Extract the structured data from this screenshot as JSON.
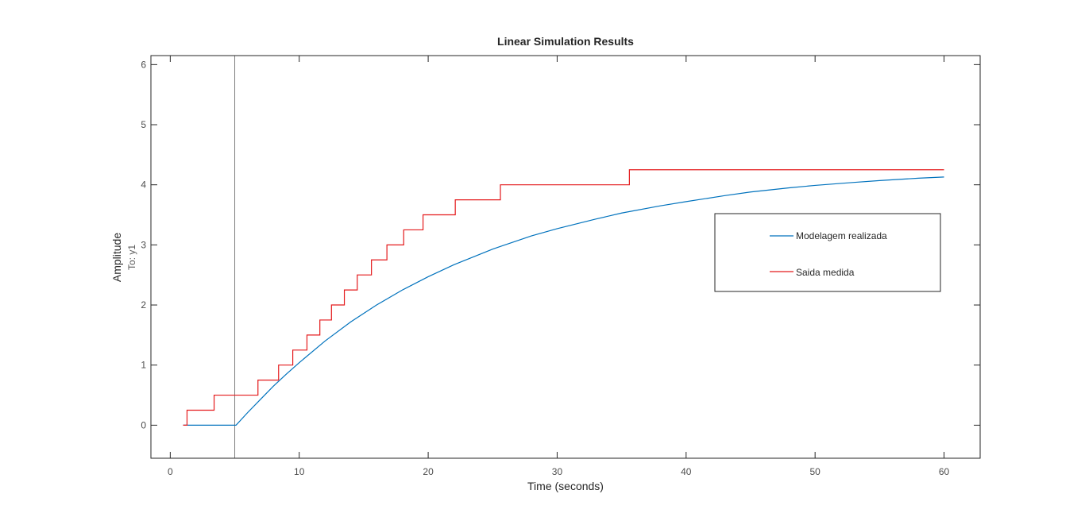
{
  "chart_data": {
    "type": "line",
    "title": "Linear Simulation Results",
    "xlabel": "Time (seconds)",
    "ylabel": "Amplitude",
    "ysublabel": "To: y1",
    "xlim": [
      -1.5,
      62.8
    ],
    "ylim": [
      -0.55,
      6.15
    ],
    "xticks": [
      0,
      10,
      20,
      30,
      40,
      50,
      60
    ],
    "yticks": [
      0,
      1,
      2,
      3,
      4,
      5,
      6
    ],
    "grid": false,
    "legend_position": "center-right",
    "reference_line_x": 5,
    "series": [
      {
        "name": "Modelagem realizada",
        "color": "#0072BD",
        "style": "line",
        "x": [
          1,
          5,
          5.1,
          6,
          7,
          8,
          9,
          10,
          12,
          14,
          16,
          18,
          20,
          22,
          25,
          28,
          30,
          33,
          35,
          38,
          40,
          43,
          45,
          48,
          50,
          53,
          55,
          58,
          60
        ],
        "y": [
          0,
          0,
          0.0,
          0.21,
          0.43,
          0.65,
          0.85,
          1.04,
          1.4,
          1.72,
          2.0,
          2.25,
          2.47,
          2.67,
          2.93,
          3.15,
          3.27,
          3.43,
          3.53,
          3.65,
          3.72,
          3.82,
          3.88,
          3.95,
          3.99,
          4.04,
          4.07,
          4.11,
          4.13
        ]
      },
      {
        "name": "Saida medida",
        "color": "#E41A1C",
        "style": "step",
        "x": [
          1,
          1.3,
          3.4,
          6.8,
          8.4,
          9.5,
          10.6,
          11.6,
          12.5,
          13.5,
          14.5,
          15.6,
          16.8,
          18.1,
          19.6,
          22.1,
          25.6,
          35.6,
          60
        ],
        "y": [
          0,
          0.25,
          0.5,
          0.75,
          1.0,
          1.25,
          1.5,
          1.75,
          2.0,
          2.25,
          2.5,
          2.75,
          3.0,
          3.25,
          3.5,
          3.75,
          4.0,
          4.25,
          4.25
        ]
      }
    ]
  }
}
